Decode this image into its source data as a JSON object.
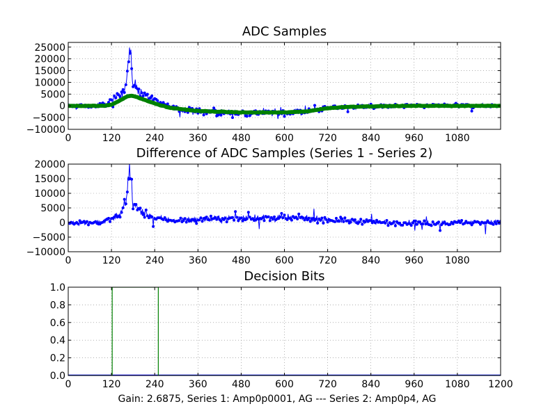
{
  "footer": "Gain: 2.6875, Series 1: Amp0p0001, AG --- Series 2: Amp0p4, AG",
  "colors": {
    "series1": "#0000ff",
    "series2": "#008000",
    "grid": "#808080",
    "axes": "#000000",
    "background": "#ffffff"
  },
  "chart_data": [
    {
      "type": "line",
      "title": "ADC Samples",
      "xlim": [
        0,
        1200
      ],
      "ylim": [
        -10000,
        27000
      ],
      "xticks": [
        0,
        120,
        240,
        360,
        480,
        600,
        720,
        840,
        960,
        1080
      ],
      "yticks": [
        -10000,
        -5000,
        0,
        5000,
        10000,
        15000,
        20000,
        25000
      ],
      "xtick_labels": [
        "0",
        "120",
        "240",
        "360",
        "480",
        "600",
        "720",
        "840",
        "960",
        "1080"
      ],
      "ytick_labels": [
        "−10000",
        "−5000",
        "0",
        "5000",
        "10000",
        "15000",
        "20000",
        "25000"
      ],
      "grid": true,
      "series": [
        {
          "color": "#0000ff",
          "marker": "dot",
          "style": "noisy",
          "x": [
            0,
            60,
            100,
            130,
            150,
            160,
            165,
            170,
            180,
            200,
            240,
            300,
            360,
            420,
            480,
            540,
            600,
            660,
            720,
            780,
            840,
            900,
            960,
            1020,
            1080,
            1140,
            1200
          ],
          "values": [
            0,
            0,
            500,
            3000,
            6000,
            9000,
            16000,
            24000,
            10000,
            6000,
            2000,
            -1000,
            -2500,
            -2800,
            -3000,
            -3000,
            -3000,
            -2500,
            -1000,
            -500,
            -300,
            -200,
            0,
            0,
            0,
            0,
            0
          ]
        },
        {
          "color": "#008000",
          "marker": "dot",
          "style": "smooth",
          "x": [
            0,
            100,
            120,
            140,
            160,
            170,
            180,
            200,
            240,
            280,
            360,
            480,
            600,
            660,
            720,
            780,
            840,
            900,
            960,
            1080,
            1200
          ],
          "values": [
            0,
            0,
            500,
            2000,
            3800,
            4300,
            4200,
            3200,
            1000,
            -800,
            -2200,
            -2800,
            -2800,
            -2400,
            -1000,
            -400,
            -200,
            -100,
            0,
            0,
            0
          ]
        }
      ]
    },
    {
      "type": "line",
      "title": "Difference of ADC Samples (Series 1 - Series 2)",
      "xlim": [
        0,
        1200
      ],
      "ylim": [
        -10000,
        20000
      ],
      "xticks": [
        0,
        120,
        240,
        360,
        480,
        600,
        720,
        840,
        960,
        1080
      ],
      "yticks": [
        -10000,
        -5000,
        0,
        5000,
        10000,
        15000,
        20000
      ],
      "xtick_labels": [
        "0",
        "120",
        "240",
        "360",
        "480",
        "600",
        "720",
        "840",
        "960",
        "1080"
      ],
      "ytick_labels": [
        "−10000",
        "−5000",
        "0",
        "5000",
        "10000",
        "15000",
        "20000"
      ],
      "grid": true,
      "series": [
        {
          "color": "#0000ff",
          "marker": "dot",
          "style": "noisy",
          "x": [
            0,
            60,
            100,
            130,
            150,
            160,
            165,
            170,
            180,
            200,
            240,
            300,
            360,
            420,
            480,
            540,
            600,
            660,
            720,
            780,
            840,
            900,
            960,
            1020,
            1080,
            1140,
            1200
          ],
          "values": [
            0,
            0,
            300,
            1500,
            4000,
            8000,
            14000,
            19500,
            6000,
            4000,
            1500,
            800,
            1000,
            1200,
            1500,
            1500,
            1600,
            1400,
            900,
            600,
            200,
            -100,
            -200,
            -300,
            0,
            0,
            0
          ]
        }
      ]
    },
    {
      "type": "line",
      "title": "Decision Bits",
      "xlim": [
        0,
        1200
      ],
      "ylim": [
        0.0,
        1.0
      ],
      "xticks": [
        0,
        120,
        240,
        360,
        480,
        600,
        720,
        840,
        960,
        1080,
        1200
      ],
      "yticks": [
        0.0,
        0.2,
        0.4,
        0.6,
        0.8,
        1.0
      ],
      "xtick_labels": [
        "0",
        "120",
        "240",
        "360",
        "480",
        "600",
        "720",
        "840",
        "960",
        "1080",
        "1200"
      ],
      "ytick_labels": [
        "0.0",
        "0.2",
        "0.4",
        "0.6",
        "0.8",
        "1.0"
      ],
      "grid": true,
      "series": [
        {
          "color": "#0000ff",
          "style": "step",
          "x": [
            0,
            1200
          ],
          "values": [
            0,
            0
          ]
        },
        {
          "color": "#008000",
          "style": "step",
          "x": [
            0,
            122,
            122,
            250,
            250,
            1200
          ],
          "values": [
            0,
            0,
            1,
            1,
            0,
            0
          ]
        }
      ]
    }
  ]
}
